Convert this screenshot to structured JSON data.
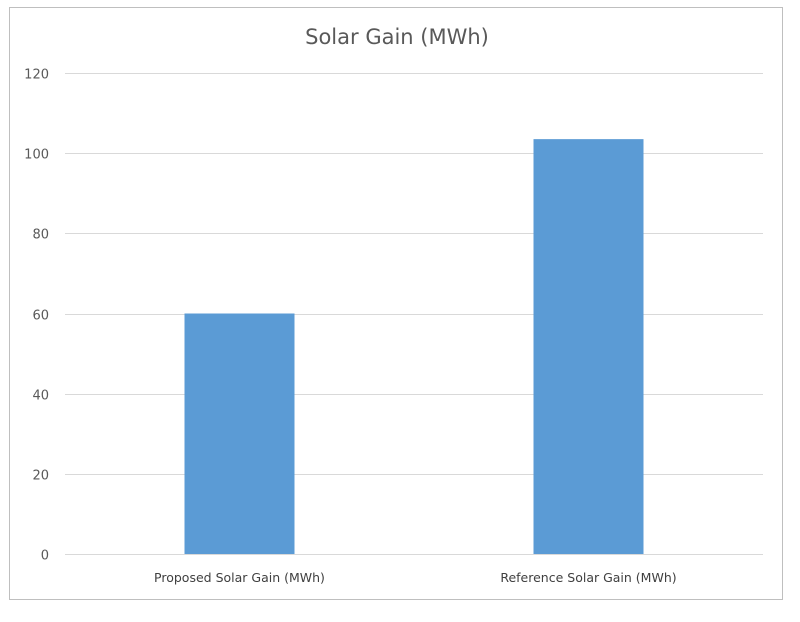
{
  "chart_data": {
    "type": "bar",
    "title": "Solar Gain (MWh)",
    "categories": [
      "Proposed Solar Gain (MWh)",
      "Reference Solar Gain (MWh)"
    ],
    "values": [
      60,
      103.5
    ],
    "ylim": [
      0,
      120
    ],
    "yticks": [
      "0",
      "20",
      "40",
      "60",
      "80",
      "100",
      "120"
    ],
    "grid": true,
    "legend": "none",
    "bar_color": "#5b9bd5",
    "grid_color": "#d9d9d9",
    "text_color": "#595959"
  }
}
